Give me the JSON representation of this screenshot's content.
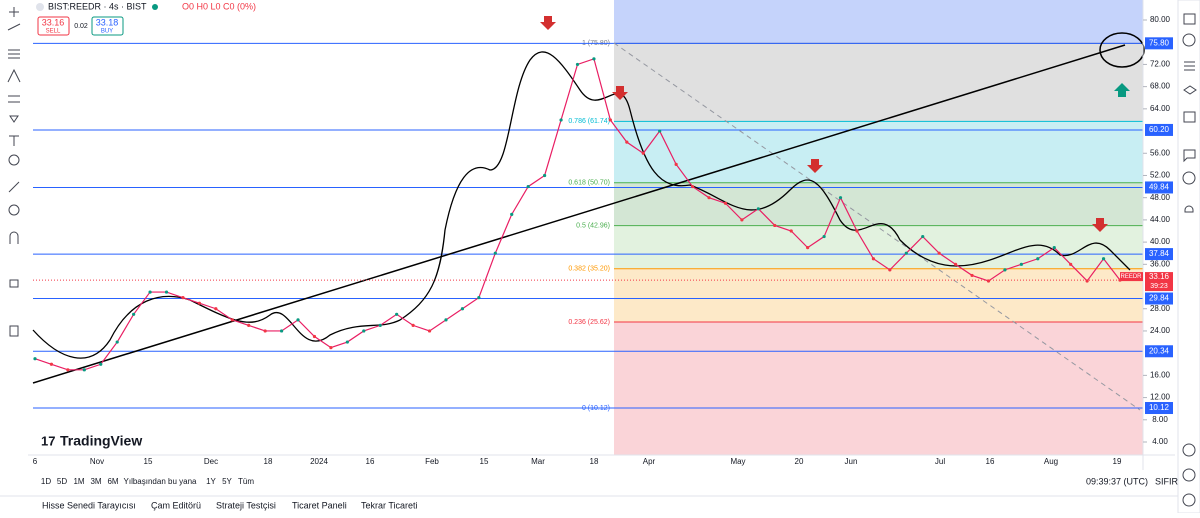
{
  "header": {
    "symbol": "BIST:REEDR · 4s · BIST",
    "ohlc": "O0 H0 L0 C0 (0%)",
    "sell_price": "33.16",
    "sell": "SELL",
    "spread": "0.02",
    "buy_price": "33.18",
    "buy": "BUY"
  },
  "chart": {
    "ylim": [
      4,
      80
    ],
    "yticks": [
      {
        "value": 80,
        "label": "80.00"
      },
      {
        "value": 72,
        "label": "72.00"
      },
      {
        "value": 68,
        "label": "68.00"
      },
      {
        "value": 64,
        "label": "64.00"
      },
      {
        "value": 56,
        "label": "56.00"
      },
      {
        "value": 52,
        "label": "52.00"
      },
      {
        "value": 48,
        "label": "48.00"
      },
      {
        "value": 44,
        "label": "44.00"
      },
      {
        "value": 40,
        "label": "40.00"
      },
      {
        "value": 36,
        "label": "36.00"
      },
      {
        "value": 28,
        "label": "28.00"
      },
      {
        "value": 24,
        "label": "24.00"
      },
      {
        "value": 16,
        "label": "16.00"
      },
      {
        "value": 12,
        "label": "12.00"
      },
      {
        "value": 8,
        "label": "8.00"
      },
      {
        "value": 4,
        "label": "4.00"
      }
    ],
    "levels": [
      {
        "value": 75.8,
        "label": "75.80",
        "color": "#2962ff"
      },
      {
        "value": 60.2,
        "label": "60.20",
        "color": "#2962ff"
      },
      {
        "value": 49.84,
        "label": "49.84",
        "color": "#2962ff"
      },
      {
        "value": 37.84,
        "label": "37.84",
        "color": "#2962ff"
      },
      {
        "value": 29.84,
        "label": "29.84",
        "color": "#2962ff"
      },
      {
        "value": 20.34,
        "label": "20.34",
        "color": "#2962ff"
      },
      {
        "value": 10.12,
        "label": "10.12",
        "color": "#2962ff"
      }
    ],
    "fib": [
      {
        "value": 75.8,
        "label": "1 (75.80)",
        "color": "#787b86",
        "fill": "#e0e0e0"
      },
      {
        "value": 61.74,
        "label": "0.786 (61.74)",
        "color": "#00bcd4",
        "fill": "#c8eef3"
      },
      {
        "value": 50.7,
        "label": "0.618 (50.70)",
        "color": "#4caf50",
        "fill": "#d3e6d4"
      },
      {
        "value": 42.96,
        "label": "0.5 (42.96)",
        "color": "#4caf50",
        "fill": "#e2f2df"
      },
      {
        "value": 35.2,
        "label": "0.382 (35.20)",
        "color": "#ff9800",
        "fill": "#fde9c8"
      },
      {
        "value": 25.62,
        "label": "0.236 (25.62)",
        "color": "#f23645",
        "fill": "#fad4d8"
      },
      {
        "value": 10.12,
        "label": "0 (10.12)",
        "color": "#2962ff",
        "fill": "#fad4d8"
      }
    ],
    "price": {
      "values": [
        19,
        18,
        17,
        17,
        18,
        22,
        27,
        31,
        31,
        30,
        29,
        28,
        26,
        25,
        24,
        24,
        26,
        23,
        21,
        22,
        24,
        25,
        27,
        25,
        24,
        26,
        28,
        30,
        38,
        45,
        50,
        52,
        62,
        72,
        73,
        62,
        58,
        56,
        60,
        54,
        50,
        48,
        47,
        44,
        46,
        43,
        42,
        39,
        41,
        48,
        42,
        37,
        35,
        38,
        41,
        38,
        36,
        34,
        33,
        35,
        36,
        37,
        39,
        36,
        33,
        37,
        33.16
      ]
    },
    "current": {
      "name": "REEDR",
      "value": 33.16,
      "label": "33.16",
      "timer": "39:23"
    },
    "time_labels": [
      "6",
      "Nov",
      "15",
      "Dec",
      "18",
      "2024",
      "16",
      "Feb",
      "15",
      "Mar",
      "18",
      "Apr",
      "May",
      "20",
      "Jun",
      "Jul",
      "16",
      "Aug",
      "19"
    ]
  },
  "logo": "TradingView",
  "ranges": [
    "1D",
    "5D",
    "1M",
    "3M",
    "6M",
    "Yılbaşından bu yana",
    "1Y",
    "5Y",
    "Tüm"
  ],
  "clock": "09:39:37 (UTC)",
  "reset": "SIFIR",
  "tabs": [
    "Hisse Senedi Tarayıcısı",
    "Çam Editörü",
    "Strateji Testçisi",
    "Ticaret Paneli",
    "Tekrar Ticareti"
  ]
}
